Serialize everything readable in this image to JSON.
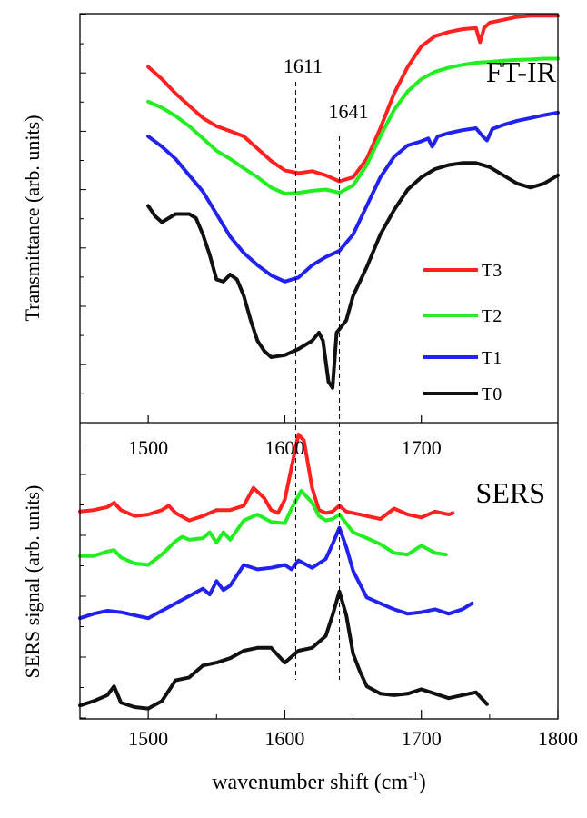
{
  "chart_data": [
    {
      "type": "line",
      "panel": "FT-IR (top)",
      "label": "FT-IR",
      "ylabel": "Transmittance (arb. units)",
      "y_tick_labels": "none (unlabeled ticks)",
      "top_axis_ticks": [
        1500,
        1600,
        1700
      ],
      "xlim": [
        1450,
        1800
      ],
      "ylim": [
        0,
        10
      ],
      "legend_position": "center-right",
      "reference_lines": [
        {
          "x": 1608,
          "label": "1611"
        },
        {
          "x": 1640,
          "label": "1641"
        }
      ],
      "series": [
        {
          "name": "T3",
          "color": "#ff2020",
          "x": [
            1500,
            1510,
            1520,
            1530,
            1540,
            1550,
            1560,
            1570,
            1580,
            1590,
            1600,
            1610,
            1620,
            1630,
            1640,
            1650,
            1660,
            1670,
            1680,
            1690,
            1700,
            1710,
            1720,
            1730,
            1740,
            1743,
            1746,
            1750,
            1760,
            1770,
            1780,
            1790,
            1800
          ],
          "y": [
            8.7,
            8.4,
            8.05,
            7.75,
            7.45,
            7.25,
            7.13,
            7.0,
            6.7,
            6.4,
            6.17,
            6.1,
            6.15,
            6.05,
            5.9,
            6.0,
            6.45,
            7.2,
            8.05,
            8.7,
            9.2,
            9.45,
            9.55,
            9.62,
            9.65,
            9.3,
            9.65,
            9.78,
            9.85,
            9.92,
            9.95,
            9.95,
            9.95
          ]
        },
        {
          "name": "T2",
          "color": "#22ee22",
          "x": [
            1500,
            1510,
            1520,
            1530,
            1540,
            1550,
            1560,
            1570,
            1580,
            1590,
            1600,
            1610,
            1620,
            1630,
            1640,
            1650,
            1660,
            1670,
            1680,
            1690,
            1700,
            1710,
            1720,
            1730,
            1740,
            1750,
            1760,
            1770,
            1780,
            1790,
            1800
          ],
          "y": [
            7.85,
            7.7,
            7.5,
            7.25,
            6.95,
            6.65,
            6.45,
            6.22,
            6.0,
            5.75,
            5.6,
            5.62,
            5.67,
            5.7,
            5.62,
            5.8,
            6.3,
            7.0,
            7.65,
            8.1,
            8.4,
            8.58,
            8.68,
            8.75,
            8.8,
            8.82,
            8.85,
            8.87,
            8.88,
            8.9,
            8.9
          ]
        },
        {
          "name": "T1",
          "color": "#2222ee",
          "x": [
            1500,
            1510,
            1520,
            1530,
            1540,
            1550,
            1560,
            1570,
            1580,
            1590,
            1600,
            1610,
            1620,
            1630,
            1640,
            1650,
            1660,
            1670,
            1680,
            1690,
            1700,
            1705,
            1708,
            1712,
            1720,
            1730,
            1740,
            1745,
            1748,
            1752,
            1760,
            1770,
            1780,
            1790,
            1800
          ],
          "y": [
            7.0,
            6.75,
            6.45,
            6.05,
            5.65,
            5.1,
            4.55,
            4.15,
            3.85,
            3.6,
            3.45,
            3.55,
            3.85,
            4.05,
            4.2,
            4.6,
            5.3,
            6.0,
            6.5,
            6.78,
            6.88,
            6.95,
            6.75,
            7.0,
            7.08,
            7.15,
            7.2,
            7.0,
            6.9,
            7.18,
            7.28,
            7.38,
            7.45,
            7.52,
            7.58
          ]
        },
        {
          "name": "T0",
          "color": "#111111",
          "x": [
            1500,
            1505,
            1510,
            1520,
            1530,
            1535,
            1540,
            1545,
            1550,
            1555,
            1560,
            1565,
            1570,
            1575,
            1580,
            1585,
            1590,
            1600,
            1610,
            1620,
            1625,
            1628,
            1632,
            1635,
            1638,
            1645,
            1650,
            1660,
            1670,
            1680,
            1690,
            1700,
            1710,
            1720,
            1730,
            1740,
            1750,
            1760,
            1770,
            1780,
            1790,
            1800
          ],
          "y": [
            5.3,
            5.05,
            4.9,
            5.1,
            5.1,
            5.0,
            4.6,
            4.1,
            3.5,
            3.45,
            3.62,
            3.5,
            3.1,
            2.5,
            2.0,
            1.75,
            1.6,
            1.65,
            1.8,
            2.0,
            2.2,
            2.0,
            1.0,
            0.85,
            2.2,
            2.5,
            3.1,
            3.8,
            4.6,
            5.2,
            5.7,
            6.0,
            6.2,
            6.3,
            6.35,
            6.35,
            6.25,
            6.05,
            5.85,
            5.75,
            5.85,
            6.05
          ]
        }
      ]
    },
    {
      "type": "line",
      "panel": "SERS (bottom)",
      "label": "SERS",
      "xlabel_prefix": "wavenumber shift (cm",
      "xlabel_sup": "-1",
      "xlabel_suffix": ")",
      "ylabel": "SERS signal (arb. units)",
      "x_ticks": [
        1500,
        1600,
        1700,
        1800
      ],
      "xlim": [
        1450,
        1800
      ],
      "ylim": [
        0,
        10
      ],
      "series": [
        {
          "name": "T3",
          "color": "#ff2020",
          "x": [
            1450,
            1460,
            1470,
            1475,
            1480,
            1490,
            1500,
            1510,
            1515,
            1520,
            1530,
            1540,
            1550,
            1560,
            1570,
            1577,
            1585,
            1590,
            1595,
            1600,
            1605,
            1610,
            1614,
            1620,
            1625,
            1630,
            1635,
            1640,
            1645,
            1650,
            1660,
            1670,
            1680,
            1690,
            1700,
            1710,
            1720,
            1723
          ],
          "y": [
            7.0,
            7.05,
            7.15,
            7.3,
            7.05,
            6.85,
            6.9,
            7.05,
            7.2,
            6.95,
            6.7,
            6.85,
            7.05,
            7.05,
            7.2,
            7.8,
            7.45,
            7.05,
            6.95,
            7.4,
            8.5,
            9.6,
            9.4,
            7.8,
            7.05,
            6.95,
            7.0,
            7.2,
            7.0,
            6.95,
            6.85,
            6.75,
            7.1,
            6.9,
            6.8,
            7.0,
            6.9,
            6.95
          ]
        },
        {
          "name": "T2",
          "color": "#22ee22",
          "x": [
            1450,
            1460,
            1470,
            1475,
            1480,
            1490,
            1500,
            1510,
            1520,
            1525,
            1530,
            1540,
            1545,
            1550,
            1555,
            1560,
            1570,
            1580,
            1590,
            1600,
            1605,
            1612,
            1620,
            1625,
            1630,
            1635,
            1640,
            1645,
            1650,
            1660,
            1670,
            1680,
            1690,
            1700,
            1710,
            1718
          ],
          "y": [
            5.5,
            5.5,
            5.65,
            5.7,
            5.45,
            5.25,
            5.2,
            5.55,
            6.0,
            6.15,
            6.05,
            6.1,
            6.3,
            5.95,
            6.3,
            6.05,
            6.7,
            6.9,
            6.65,
            6.6,
            7.1,
            7.7,
            7.3,
            6.85,
            6.7,
            6.75,
            6.9,
            6.6,
            6.3,
            6.1,
            5.9,
            5.6,
            5.55,
            5.85,
            5.6,
            5.55
          ]
        },
        {
          "name": "T1",
          "color": "#2222ee",
          "x": [
            1450,
            1460,
            1470,
            1480,
            1490,
            1500,
            1510,
            1520,
            1530,
            1540,
            1545,
            1550,
            1555,
            1560,
            1570,
            1580,
            1590,
            1600,
            1605,
            1610,
            1620,
            1630,
            1635,
            1640,
            1645,
            1650,
            1660,
            1670,
            1680,
            1690,
            1700,
            1710,
            1720,
            1730,
            1737
          ],
          "y": [
            3.4,
            3.55,
            3.65,
            3.6,
            3.5,
            3.4,
            3.65,
            3.9,
            4.15,
            4.4,
            4.2,
            4.65,
            4.35,
            4.5,
            5.2,
            5.05,
            5.1,
            5.2,
            5.05,
            5.35,
            5.1,
            5.4,
            5.9,
            6.45,
            5.8,
            5.0,
            4.1,
            3.9,
            3.7,
            3.55,
            3.6,
            3.7,
            3.55,
            3.7,
            3.9
          ]
        },
        {
          "name": "T0",
          "color": "#111111",
          "x": [
            1450,
            1460,
            1470,
            1475,
            1480,
            1490,
            1500,
            1510,
            1520,
            1530,
            1540,
            1550,
            1560,
            1570,
            1580,
            1590,
            1600,
            1610,
            1620,
            1630,
            1635,
            1640,
            1645,
            1650,
            1655,
            1660,
            1670,
            1680,
            1690,
            1700,
            1710,
            1720,
            1730,
            1740,
            1748
          ],
          "y": [
            0.45,
            0.6,
            0.8,
            1.1,
            0.55,
            0.4,
            0.35,
            0.6,
            1.3,
            1.4,
            1.8,
            1.9,
            2.05,
            2.3,
            2.4,
            2.4,
            1.9,
            2.3,
            2.4,
            2.8,
            3.5,
            4.3,
            3.5,
            2.2,
            1.6,
            1.1,
            0.85,
            0.8,
            0.85,
            1.0,
            0.85,
            0.7,
            0.8,
            0.9,
            0.5
          ]
        }
      ]
    }
  ]
}
